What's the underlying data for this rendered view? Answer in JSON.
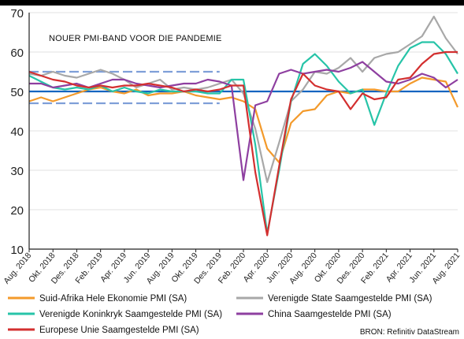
{
  "chart_data": {
    "type": "line",
    "title": "",
    "xlabel": "",
    "ylabel": "",
    "ylim": [
      10,
      70
    ],
    "yticks": [
      10,
      20,
      30,
      40,
      50,
      60,
      70
    ],
    "grid": "horizontal",
    "x": [
      "2018-08",
      "2018-09",
      "2018-10",
      "2018-11",
      "2018-12",
      "2019-01",
      "2019-02",
      "2019-03",
      "2019-04",
      "2019-05",
      "2019-06",
      "2019-07",
      "2019-08",
      "2019-09",
      "2019-10",
      "2019-11",
      "2019-12",
      "2020-01",
      "2020-02",
      "2020-03",
      "2020-04",
      "2020-05",
      "2020-06",
      "2020-07",
      "2020-08",
      "2020-09",
      "2020-10",
      "2020-11",
      "2020-12",
      "2021-01",
      "2021-02",
      "2021-03",
      "2021-04",
      "2021-05",
      "2021-06",
      "2021-07",
      "2021-08"
    ],
    "x_tick_labels": [
      "Aug. 2018",
      "Okt. 2018",
      "Des. 2018",
      "Feb. 2019",
      "Apr. 2019",
      "Jun. 2019",
      "Aug. 2019",
      "Okt. 2019",
      "Des. 2019",
      "Feb. 2020",
      "Apr. 2020",
      "Jun. 2020",
      "Aug. 2020",
      "Okt. 2020",
      "Des. 2020",
      "Feb. 2021",
      "Apr. 2021",
      "Jun. 2021",
      "Aug. 2021"
    ],
    "series": [
      {
        "name": "Suid-Afrika Hele Ekonomie PMI (SA)",
        "color": "#f39a2b",
        "values": [
          47.5,
          48.5,
          47.5,
          48.5,
          49.5,
          50.5,
          51,
          50,
          49.5,
          50.5,
          49,
          49.5,
          49.5,
          50,
          49,
          48.5,
          48,
          48.5,
          47.5,
          45.5,
          35.5,
          32,
          42,
          45,
          45.5,
          49,
          50,
          49.5,
          50.5,
          50.5,
          50,
          50,
          52,
          53.5,
          53,
          52.5,
          46
        ]
      },
      {
        "name": "Verenigde State Saamgestelde PMI (SA)",
        "color": "#a8a8a8",
        "values": [
          54.5,
          54,
          55,
          54,
          53.5,
          54.5,
          55.5,
          54.5,
          53,
          51,
          52,
          53,
          50.5,
          51,
          50.5,
          51,
          52,
          53,
          49.5,
          40.5,
          27,
          37,
          47.5,
          50.5,
          55,
          54.5,
          56,
          58.5,
          55,
          58.5,
          59.5,
          60,
          62,
          64,
          69,
          63.5,
          59.5
        ]
      },
      {
        "name": "Verenigde Koninkryk Saamgestelde PMI (SA)",
        "color": "#27c4a8",
        "values": [
          54,
          52.5,
          51,
          50.5,
          51,
          50.5,
          51.5,
          50,
          51,
          50,
          49.5,
          50.5,
          50,
          50,
          50,
          49.5,
          49.5,
          53,
          53,
          36.5,
          14,
          30,
          47.5,
          57,
          59.5,
          56.5,
          52.5,
          49.5,
          50.5,
          41.5,
          49.5,
          56.5,
          61,
          62.5,
          62.5,
          59.5,
          54.5
        ]
      },
      {
        "name": "China Saamgestelde PMI (SA)",
        "color": "#8e3fa0",
        "values": [
          52,
          52,
          51,
          51.5,
          52,
          51,
          52,
          53,
          53,
          52,
          51.5,
          51,
          51.5,
          52,
          52,
          53,
          52.5,
          51.5,
          27.5,
          46.5,
          47.5,
          54.5,
          55.5,
          54.5,
          55,
          55.5,
          55,
          56,
          57.5,
          55,
          52.5,
          52,
          53,
          54.5,
          53.5,
          51,
          53
        ]
      },
      {
        "name": "Europese Unie Saamgestelde PMI (SA)",
        "color": "#d32f2f",
        "values": [
          55,
          54,
          53,
          52.5,
          51.5,
          51,
          51.5,
          51,
          51.5,
          51.5,
          52,
          51.5,
          51,
          50,
          50.5,
          50,
          50.5,
          51.5,
          51.5,
          29.5,
          13.5,
          31,
          48,
          54.5,
          51.5,
          50.5,
          50,
          45.5,
          49.5,
          48,
          48.5,
          53,
          53.5,
          57,
          59.5,
          60,
          60
        ]
      }
    ],
    "reference_line": {
      "value": 50,
      "color": "#1565c0"
    },
    "band": {
      "values": [
        47,
        55
      ],
      "color": "#7f9fd8",
      "from": "2018-08",
      "to": "2019-12"
    },
    "annotation": "NOUER PMI-BAND VOOR DIE PANDEMIE",
    "legend_position": "bottom",
    "source": "BRON: Refinitiv DataStream"
  }
}
